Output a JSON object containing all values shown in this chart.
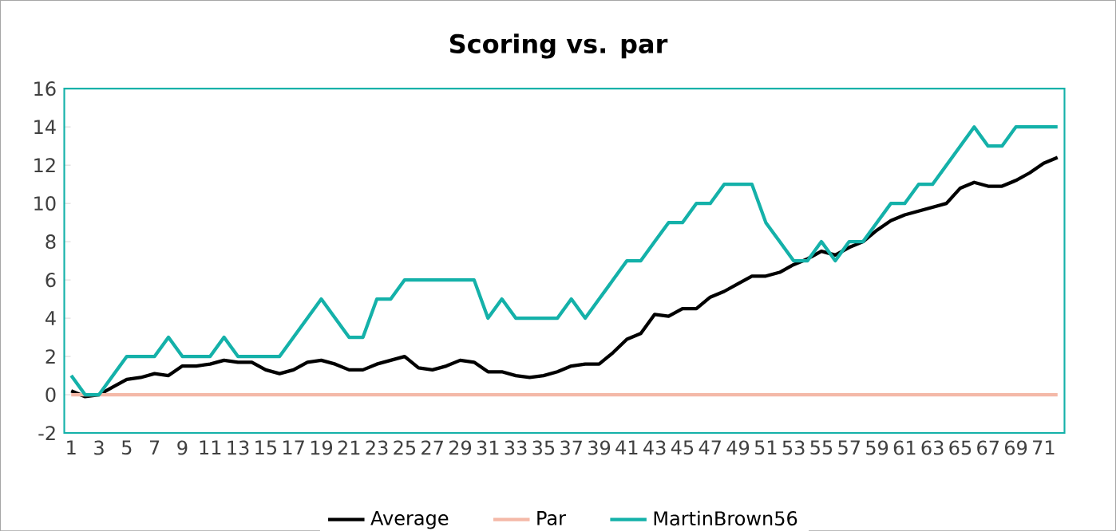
{
  "chart_data": {
    "type": "line",
    "title": "Scoring vs. par",
    "categories": [
      "1",
      null,
      "3",
      null,
      "5",
      null,
      "7",
      null,
      "9",
      null,
      "11",
      null,
      "13",
      null,
      "15",
      null,
      "17",
      null,
      "19",
      null,
      "21",
      null,
      "23",
      null,
      "25",
      null,
      "27",
      null,
      "29",
      null,
      "31",
      null,
      "33",
      null,
      "35",
      null,
      "37",
      null,
      "39",
      null,
      "41",
      null,
      "43",
      null,
      "45",
      null,
      "47",
      null,
      "49",
      null,
      "51",
      null,
      "53",
      null,
      "55",
      null,
      "57",
      null,
      "59",
      null,
      "61",
      null,
      "63",
      null,
      "65",
      null,
      "67",
      null,
      "69",
      null,
      "71",
      null
    ],
    "series": [
      {
        "name": "Average",
        "color": "#000000",
        "values": [
          0.2,
          -0.1,
          0,
          0.4,
          0.8,
          0.9,
          1.1,
          1.0,
          1.5,
          1.5,
          1.6,
          1.8,
          1.7,
          1.7,
          1.3,
          1.1,
          1.3,
          1.7,
          1.8,
          1.6,
          1.3,
          1.3,
          1.6,
          1.8,
          2.0,
          1.4,
          1.3,
          1.5,
          1.8,
          1.7,
          1.2,
          1.2,
          1.0,
          0.9,
          1.0,
          1.2,
          1.5,
          1.6,
          1.6,
          2.2,
          2.9,
          3.2,
          4.2,
          4.1,
          4.5,
          4.5,
          5.1,
          5.4,
          5.8,
          6.2,
          6.2,
          6.4,
          6.8,
          7.1,
          7.5,
          7.3,
          7.7,
          8.0,
          8.6,
          9.1,
          9.4,
          9.6,
          9.8,
          10.0,
          10.8,
          11.1,
          10.9,
          10.9,
          11.2,
          11.6,
          12.1,
          12.4
        ]
      },
      {
        "name": "Par",
        "color": "#f4b9a8",
        "values": [
          0,
          0,
          0,
          0,
          0,
          0,
          0,
          0,
          0,
          0,
          0,
          0,
          0,
          0,
          0,
          0,
          0,
          0,
          0,
          0,
          0,
          0,
          0,
          0,
          0,
          0,
          0,
          0,
          0,
          0,
          0,
          0,
          0,
          0,
          0,
          0,
          0,
          0,
          0,
          0,
          0,
          0,
          0,
          0,
          0,
          0,
          0,
          0,
          0,
          0,
          0,
          0,
          0,
          0,
          0,
          0,
          0,
          0,
          0,
          0,
          0,
          0,
          0,
          0,
          0,
          0,
          0,
          0,
          0,
          0,
          0,
          0
        ]
      },
      {
        "name": "MartinBrown56",
        "color": "#14b1a9",
        "values": [
          1,
          0,
          0,
          1,
          2,
          2,
          2,
          3,
          2,
          2,
          2,
          3,
          2,
          2,
          2,
          2,
          3,
          4,
          5,
          4,
          3,
          3,
          5,
          5,
          6,
          6,
          6,
          6,
          6,
          6,
          4,
          5,
          4,
          4,
          4,
          4,
          5,
          4,
          5,
          6,
          7,
          7,
          8,
          9,
          9,
          10,
          10,
          11,
          11,
          11,
          9,
          8,
          7,
          7,
          8,
          7,
          8,
          8,
          9,
          10,
          10,
          11,
          11,
          12,
          13,
          14,
          13,
          13,
          14,
          14,
          14,
          14
        ]
      }
    ],
    "ylim": [
      -2,
      16
    ],
    "yticks": [
      -2,
      0,
      2,
      4,
      6,
      8,
      10,
      12,
      14,
      16
    ],
    "grid": false,
    "legend": "bottom",
    "marker": "none",
    "line_style": "solid"
  }
}
